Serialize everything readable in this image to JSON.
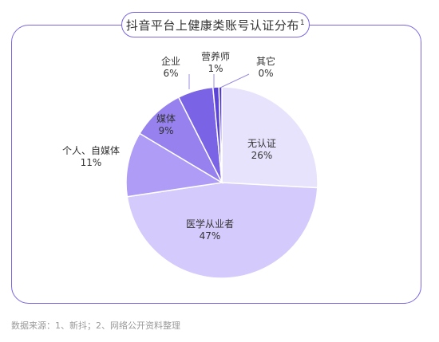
{
  "chart_data": {
    "type": "pie",
    "title": "抖音平台上健康类账号认证分布",
    "title_footnote": "1",
    "slices": [
      {
        "label": "无认证",
        "value": 26,
        "percent_label": "26%",
        "color": "#e8e3fc"
      },
      {
        "label": "医学从业者",
        "value": 47,
        "percent_label": "47%",
        "color": "#d4cafb"
      },
      {
        "label": "个人、自媒体",
        "value": 11,
        "percent_label": "11%",
        "color": "#ae9cf6"
      },
      {
        "label": "媒体",
        "value": 9,
        "percent_label": "9%",
        "color": "#9681ef"
      },
      {
        "label": "企业",
        "value": 6,
        "percent_label": "6%",
        "color": "#7a63e5"
      },
      {
        "label": "营养师",
        "value": 1,
        "percent_label": "1%",
        "color": "#5c45d6"
      },
      {
        "label": "其它",
        "value": 0.5,
        "percent_label": "0%",
        "color": "#4a31c8"
      }
    ]
  },
  "footer": {
    "source": "数据来源：1、新抖；2、网络公开资料整理"
  }
}
